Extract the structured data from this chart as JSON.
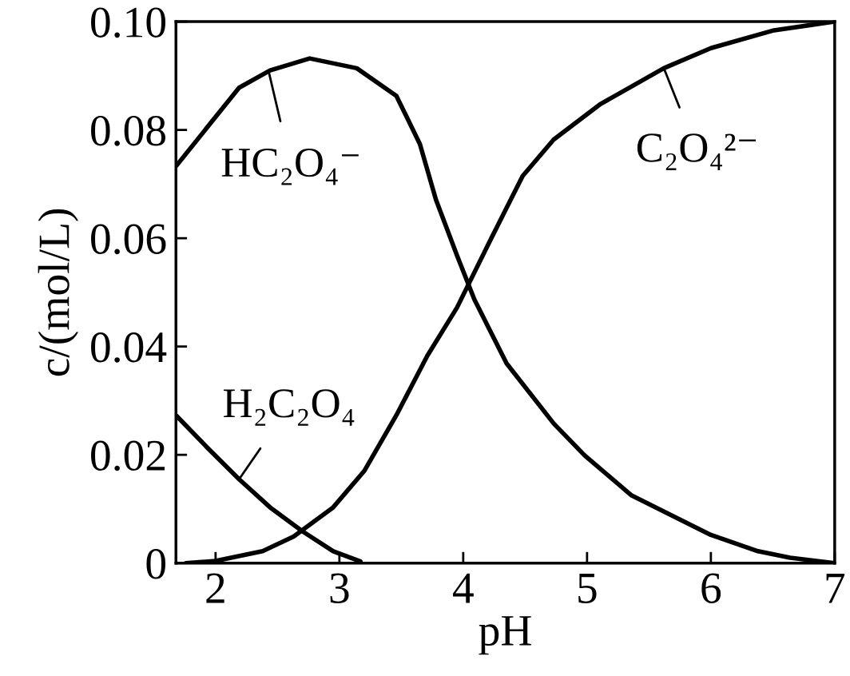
{
  "chart_data": {
    "type": "line",
    "xlabel": "pH",
    "ylabel": "c/(mol/L)",
    "xlim": [
      1.68,
      7
    ],
    "xticks": [
      2,
      3,
      4,
      5,
      6,
      7
    ],
    "ylim": [
      0,
      0.1
    ],
    "yticks": [
      0,
      {
        "value": 0.02,
        "label": "0.02"
      },
      {
        "value": 0.04,
        "label": "0.04"
      },
      {
        "value": 0.06,
        "label": "0.06"
      },
      {
        "value": 0.08,
        "label": "0.08"
      },
      {
        "value": 0.1,
        "label": "0.10"
      }
    ],
    "grid": false,
    "legend": false,
    "marker": "none",
    "line_style": "solid",
    "series": [
      {
        "color": "#000000",
        "x": [
          1.68,
          1.93,
          2.19,
          2.44,
          2.7,
          2.95,
          3.17
        ],
        "values": [
          0.0273,
          0.0214,
          0.0155,
          0.0103,
          0.0059,
          0.0022,
          0.0003
        ]
      },
      {
        "color": "#000000",
        "x": [
          1.68,
          2.19,
          2.44,
          2.76,
          3.14,
          3.46,
          3.65,
          3.78,
          3.95,
          4.09,
          4.35,
          4.73,
          4.98,
          5.36,
          6.0,
          6.38,
          6.64,
          7.0
        ],
        "values": [
          0.0733,
          0.0878,
          0.091,
          0.0932,
          0.0914,
          0.0863,
          0.0774,
          0.0671,
          0.0568,
          0.0487,
          0.0369,
          0.0258,
          0.0199,
          0.0125,
          0.0052,
          0.0022,
          0.001,
          0.0
        ]
      },
      {
        "color": "#000000",
        "x": [
          1.76,
          2.0,
          2.38,
          2.63,
          2.95,
          3.2,
          3.46,
          3.71,
          3.95,
          4.22,
          4.48,
          4.73,
          5.11,
          5.62,
          6.0,
          6.51,
          7.0
        ],
        "values": [
          0.0,
          0.0004,
          0.0022,
          0.0049,
          0.0103,
          0.017,
          0.0273,
          0.0383,
          0.0472,
          0.0597,
          0.0715,
          0.0782,
          0.0848,
          0.0914,
          0.0951,
          0.0984,
          0.1
        ]
      }
    ],
    "annotations": [
      {
        "text": "H₂C₂O₄",
        "x": 2.19,
        "y": 0.0155
      },
      {
        "text": "HC₂O₄⁻",
        "x": 2.43,
        "y": 0.0907
      },
      {
        "text": "C₂O₄²⁻",
        "x": 5.62,
        "y": 0.0914
      }
    ]
  }
}
